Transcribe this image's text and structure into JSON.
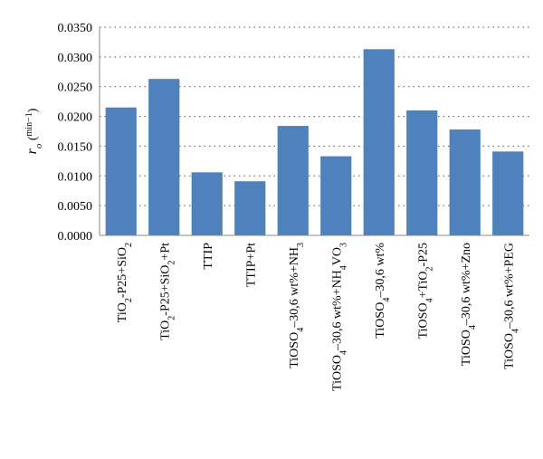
{
  "chart_data": {
    "type": "bar",
    "y_label": "ro (min−1)",
    "categories": [
      "TiO2-P25+SiO2",
      "TiO2-P25+SiO2+Pt",
      "TTIP",
      "TTIP+Pt",
      "TiOSO4–30,6 wt%+NH3",
      "TiOSO4–30,6 wt%+NH4VO3",
      "TiOSO4–30,6 wt%",
      "TiOSO4+TiO2-P25",
      "TiOSO4–30,6 wt%+Zno",
      "TiOSO4–30,6 wt%+PEG"
    ],
    "values": [
      0.0215,
      0.0263,
      0.0106,
      0.0091,
      0.0184,
      0.0133,
      0.0313,
      0.021,
      0.0178,
      0.0141
    ],
    "color": "#4f81bd",
    "ylim": [
      0,
      0.035
    ],
    "yticks": [
      {
        "value": 0,
        "label": "0.0000"
      },
      {
        "value": 0.005,
        "label": "0.0050"
      },
      {
        "value": 0.01,
        "label": "0.0100"
      },
      {
        "value": 0.015,
        "label": "0.0150"
      },
      {
        "value": 0.02,
        "label": "0.0200"
      },
      {
        "value": 0.025,
        "label": "0.0250"
      },
      {
        "value": 0.03,
        "label": "0.0300"
      },
      {
        "value": 0.035,
        "label": "0.0350"
      }
    ],
    "grid": true
  }
}
